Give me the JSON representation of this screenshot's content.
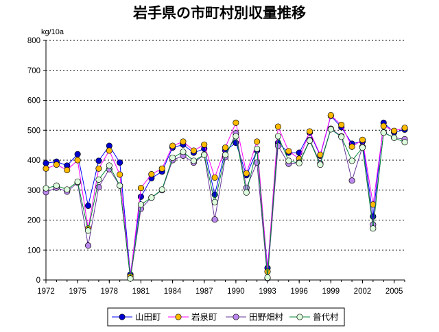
{
  "chart_data": {
    "type": "line",
    "title": "岩手県の市町村別収量推移",
    "ylabel": "kg/10a",
    "xlabel": "",
    "ylim": [
      0,
      800
    ],
    "yticks": [
      "0",
      "100",
      "200",
      "300",
      "400",
      "500",
      "600",
      "700",
      "800"
    ],
    "xticks": [
      "1972",
      "1975",
      "1978",
      "1981",
      "1984",
      "1987",
      "1990",
      "1993",
      "1996",
      "1999",
      "2002",
      "2005"
    ],
    "x": [
      1972,
      1973,
      1974,
      1975,
      1976,
      1977,
      1978,
      1979,
      1980,
      1981,
      1982,
      1983,
      1984,
      1985,
      1986,
      1987,
      1988,
      1989,
      1990,
      1991,
      1992,
      1993,
      1994,
      1995,
      1996,
      1997,
      1998,
      1999,
      2000,
      2001,
      2002,
      2003,
      2004,
      2005,
      2006
    ],
    "legend_position": "bottom",
    "grid": "horizontal dotted",
    "series": [
      {
        "name": "山田町",
        "line_color": "#0000ff",
        "marker_fill": "#0000cc",
        "values": [
          390,
          395,
          382,
          420,
          248,
          398,
          448,
          392,
          18,
          278,
          340,
          362,
          442,
          452,
          425,
          438,
          285,
          432,
          458,
          350,
          432,
          40,
          458,
          425,
          425,
          492,
          415,
          548,
          510,
          455,
          462,
          212,
          525,
          493,
          502
        ]
      },
      {
        "name": "岩泉町",
        "line_color": "#ff00ff",
        "marker_fill": "#ffbb00",
        "values": [
          372,
          385,
          367,
          400,
          172,
          372,
          432,
          352,
          12,
          307,
          353,
          372,
          448,
          462,
          432,
          452,
          342,
          442,
          525,
          356,
          462,
          28,
          512,
          430,
          405,
          496,
          418,
          550,
          518,
          445,
          468,
          252,
          514,
          498,
          508
        ]
      },
      {
        "name": "田野畑村",
        "line_color": "#663399",
        "marker_fill": "#bb88ee",
        "values": [
          293,
          308,
          295,
          325,
          115,
          310,
          370,
          315,
          5,
          238,
          275,
          300,
          400,
          415,
          392,
          418,
          202,
          410,
          490,
          308,
          392,
          6,
          448,
          388,
          392,
          468,
          390,
          505,
          480,
          332,
          445,
          185,
          493,
          475,
          470
        ]
      },
      {
        "name": "普代村",
        "line_color": "#008833",
        "marker_fill": "#ddffdd",
        "values": [
          306,
          315,
          302,
          328,
          165,
          335,
          382,
          315,
          5,
          252,
          275,
          302,
          408,
          428,
          398,
          418,
          260,
          418,
          480,
          292,
          438,
          8,
          480,
          398,
          390,
          465,
          385,
          503,
          478,
          398,
          442,
          172,
          492,
          475,
          460
        ]
      }
    ]
  }
}
